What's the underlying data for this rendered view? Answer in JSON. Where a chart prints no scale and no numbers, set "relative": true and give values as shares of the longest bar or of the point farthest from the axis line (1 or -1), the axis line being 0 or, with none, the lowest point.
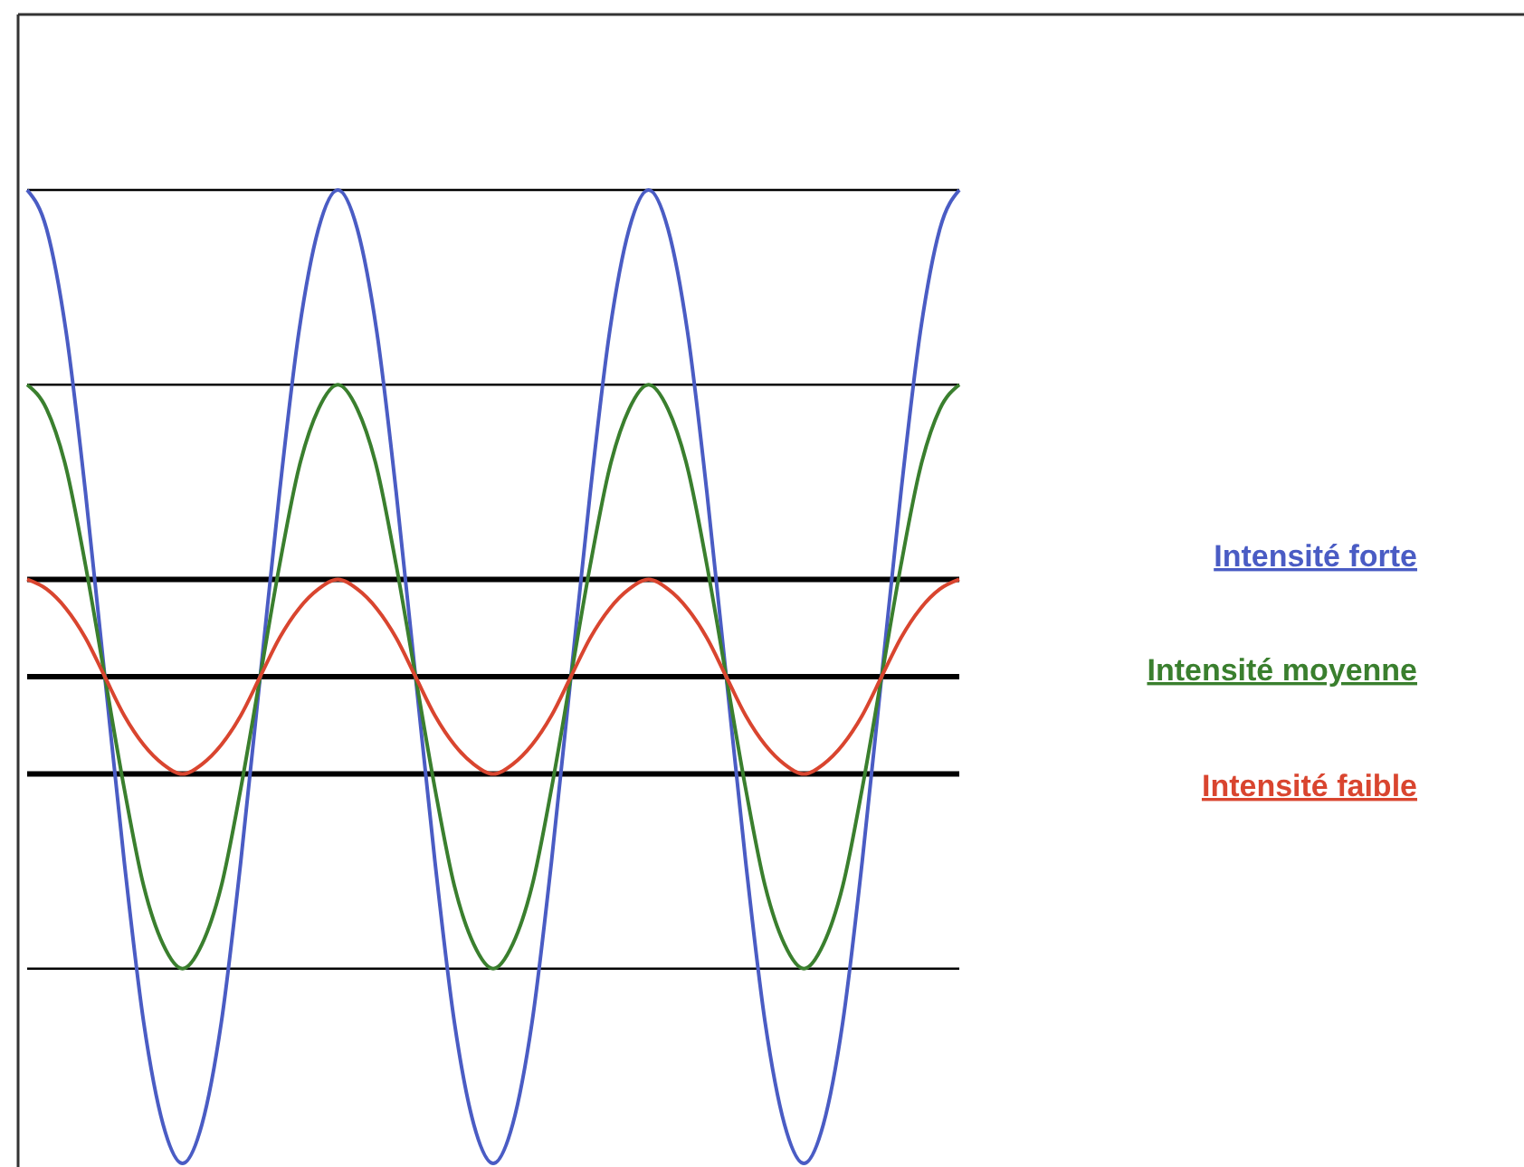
{
  "chart_data": {
    "type": "line",
    "relative": true,
    "legend": "right",
    "categories": [
      null,
      null,
      null,
      null,
      null,
      null,
      null,
      null,
      null,
      null,
      null,
      null,
      null,
      null,
      null,
      null,
      null,
      null,
      null,
      null,
      null,
      null,
      null,
      null,
      null,
      null,
      null,
      null,
      null,
      null,
      null,
      null,
      null,
      null,
      null,
      null,
      null,
      null,
      null,
      null,
      null,
      null,
      null,
      null,
      null,
      null,
      null,
      null,
      null
    ],
    "series": [
      {
        "name": "Intensité forte",
        "color": "#4a5cc4",
        "values": [
          1,
          0.92,
          0.71,
          0.38,
          0,
          -0.38,
          -0.71,
          -0.92,
          -1,
          -0.92,
          -0.71,
          -0.38,
          0,
          0.38,
          0.71,
          0.92,
          1,
          0.92,
          0.71,
          0.38,
          0,
          -0.38,
          -0.71,
          -0.92,
          -1,
          -0.92,
          -0.71,
          -0.38,
          0,
          0.38,
          0.71,
          0.92,
          1,
          0.92,
          0.71,
          0.38,
          0,
          -0.38,
          -0.71,
          -0.92,
          -1,
          -0.92,
          -0.71,
          -0.38,
          0,
          0.38,
          0.71,
          0.92,
          1
        ]
      },
      {
        "name": "Intensité moyenne",
        "color": "#3a7f2e",
        "values": [
          0.6,
          0.55,
          0.43,
          0.23,
          0,
          -0.23,
          -0.43,
          -0.55,
          -0.6,
          -0.55,
          -0.43,
          -0.23,
          0,
          0.23,
          0.43,
          0.55,
          0.6,
          0.55,
          0.43,
          0.23,
          0,
          -0.23,
          -0.43,
          -0.55,
          -0.6,
          -0.55,
          -0.43,
          -0.23,
          0,
          0.23,
          0.43,
          0.55,
          0.6,
          0.55,
          0.43,
          0.23,
          0,
          -0.23,
          -0.43,
          -0.55,
          -0.6,
          -0.55,
          -0.43,
          -0.23,
          0,
          0.23,
          0.43,
          0.55,
          0.6
        ]
      },
      {
        "name": "Intensité faible",
        "color": "#d9452f",
        "values": [
          0.2,
          0.18,
          0.14,
          0.08,
          0,
          -0.08,
          -0.14,
          -0.18,
          -0.2,
          -0.18,
          -0.14,
          -0.08,
          0,
          0.08,
          0.14,
          0.18,
          0.2,
          0.18,
          0.14,
          0.08,
          0,
          -0.08,
          -0.14,
          -0.18,
          -0.2,
          -0.18,
          -0.14,
          -0.08,
          0,
          0.08,
          0.14,
          0.18,
          0.2,
          0.18,
          0.14,
          0.08,
          0,
          -0.08,
          -0.14,
          -0.18,
          -0.2,
          -0.18,
          -0.14,
          -0.08,
          0,
          0.08,
          0.14,
          0.18,
          0.2
        ]
      }
    ],
    "ref_lines": [
      {
        "axis": "y",
        "value": 1,
        "color": "#000000"
      },
      {
        "axis": "y",
        "value": 0.6,
        "color": "#000000"
      },
      {
        "axis": "y",
        "value": 0.2,
        "color": "#000000"
      },
      {
        "axis": "y",
        "value": 0,
        "color": "#000000"
      },
      {
        "axis": "y",
        "value": -0.2,
        "color": "#000000"
      },
      {
        "axis": "y",
        "value": -0.6,
        "color": "#000000"
      }
    ]
  }
}
